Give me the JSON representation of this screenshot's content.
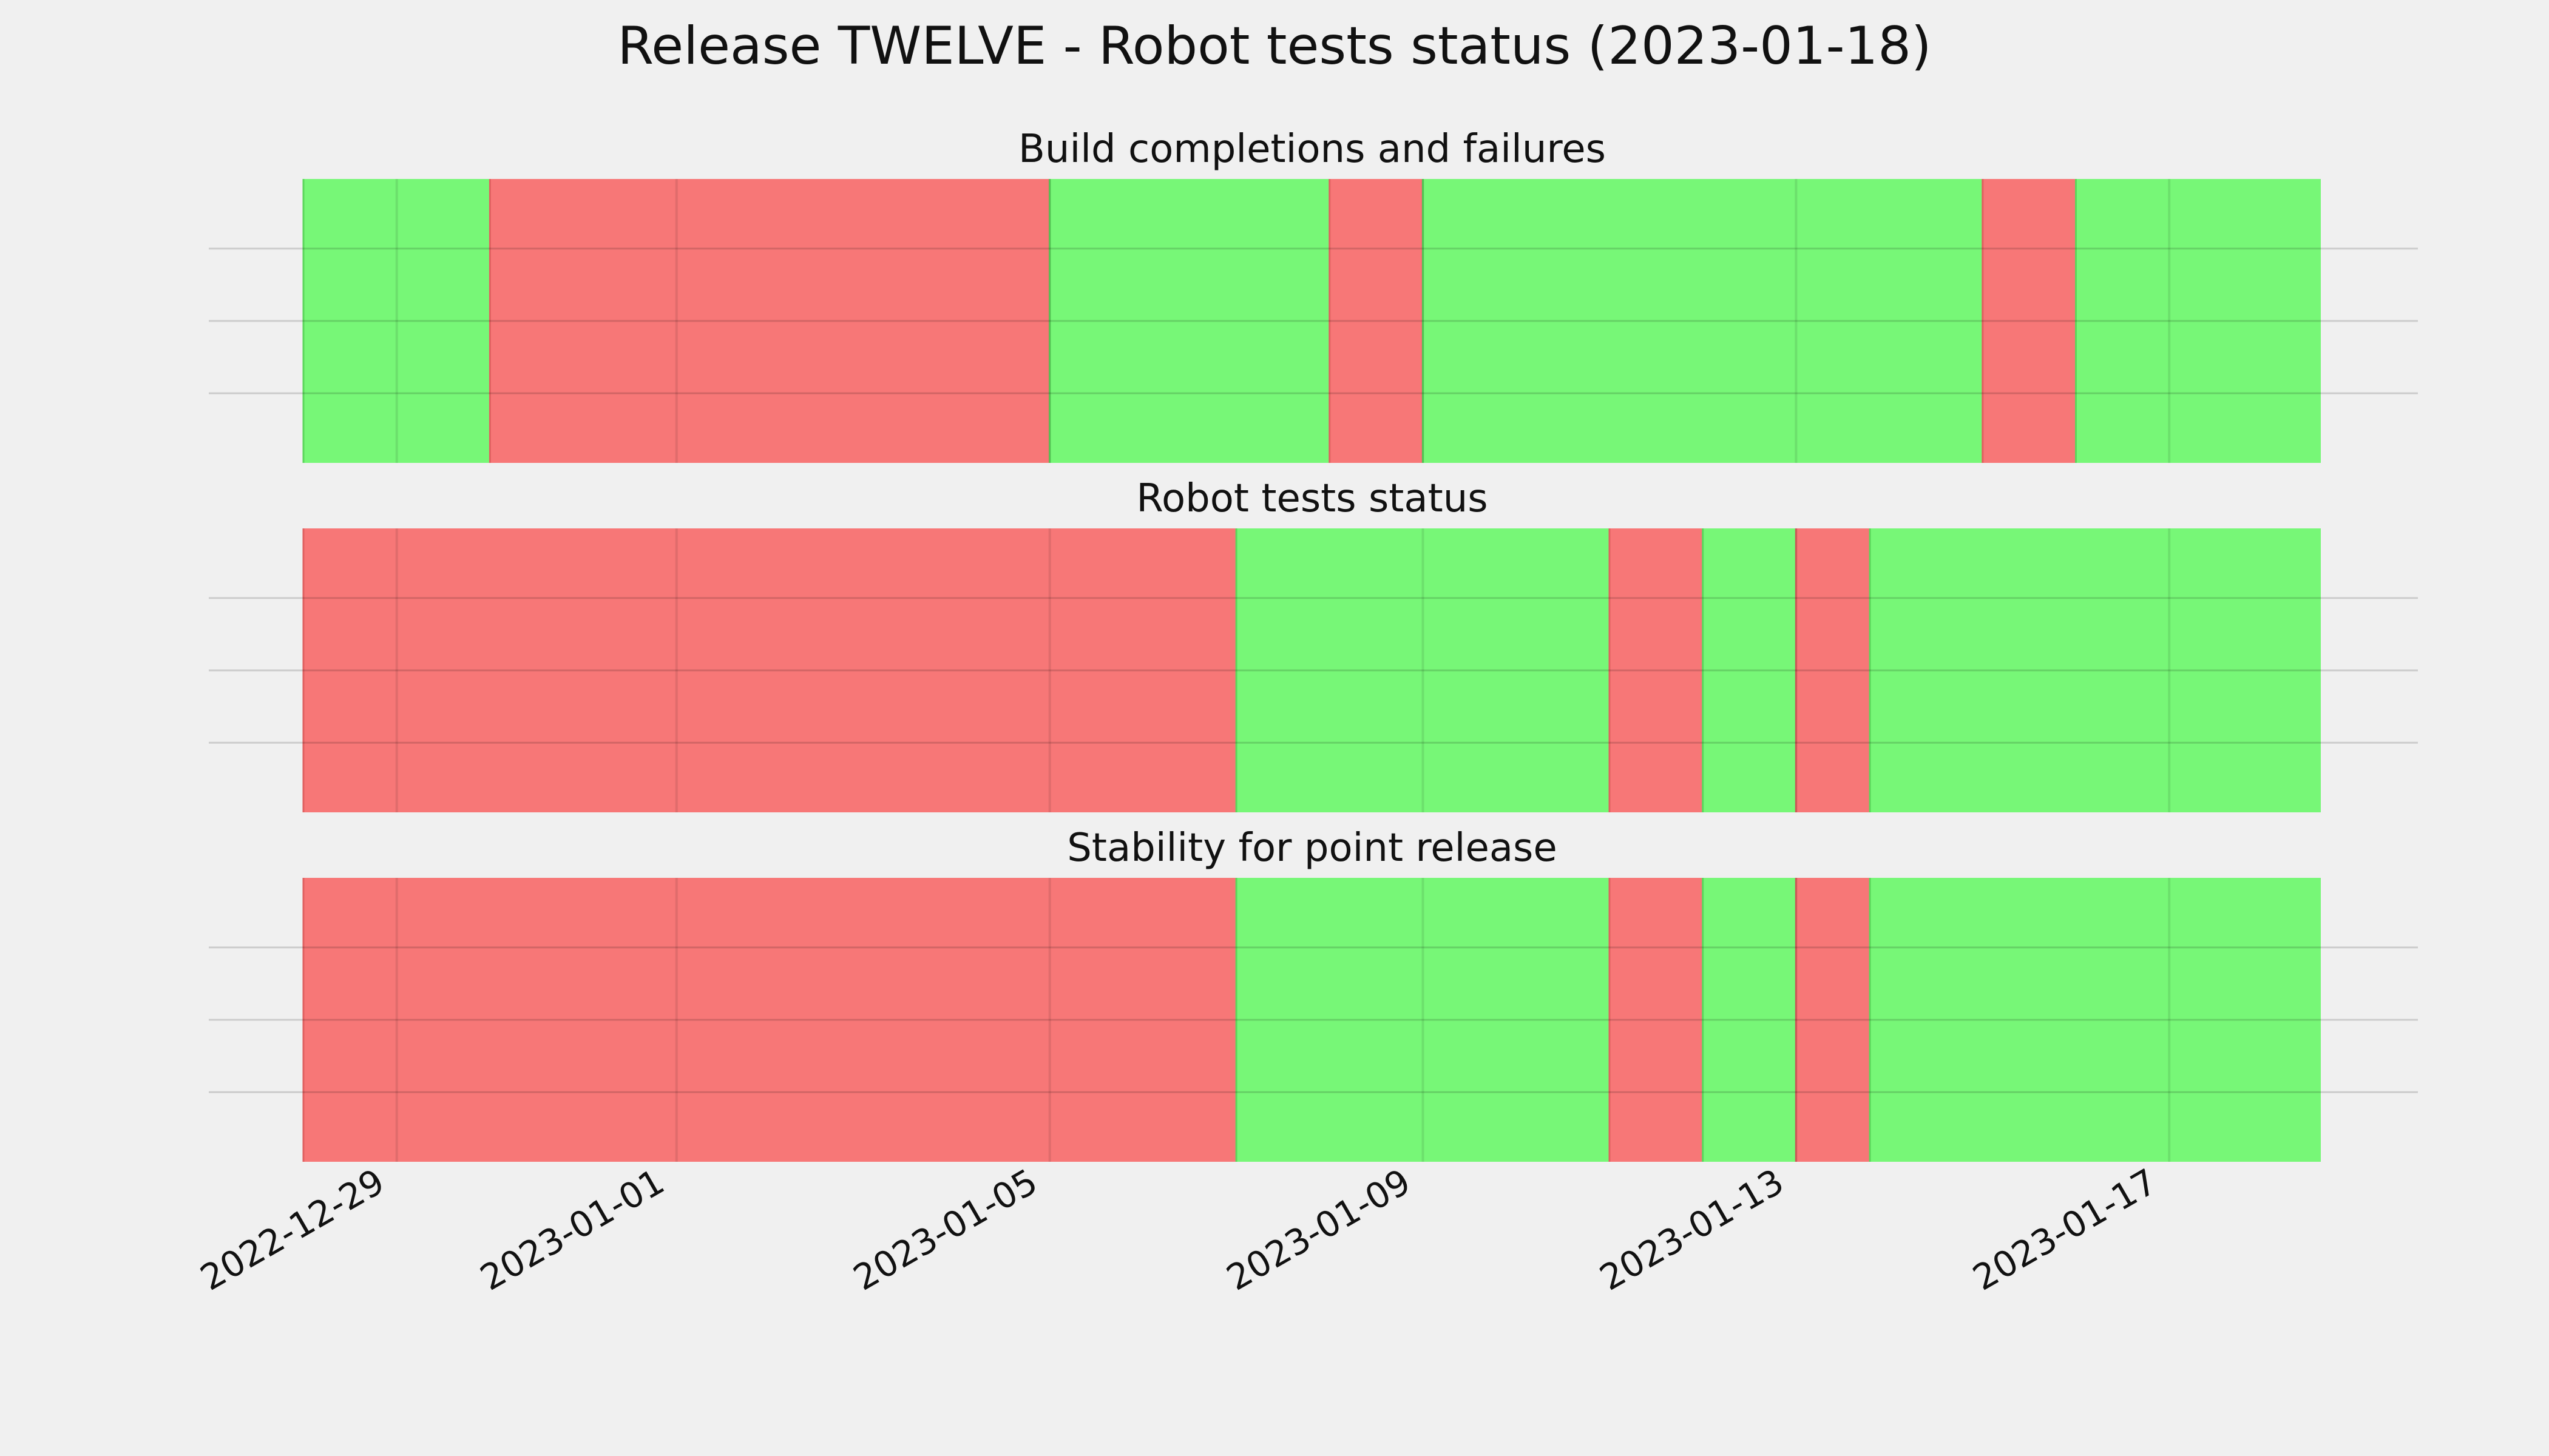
{
  "figure": {
    "title": "Release TWELVE - Robot tests status (2023-01-18)",
    "background": "#f0f0f0"
  },
  "chart_data": {
    "type": "timeline",
    "x_range": [
      "2022-12-28",
      "2023-01-18"
    ],
    "x_ticks": [
      "2022-12-29",
      "2023-01-01",
      "2023-01-05",
      "2023-01-09",
      "2023-01-13",
      "2023-01-17"
    ],
    "grid": true,
    "colors": {
      "pass": "#77f777",
      "fail": "#f77777"
    },
    "panels": [
      {
        "title": "Build completions and failures",
        "segments": [
          {
            "start": "2022-12-28T00:00",
            "end": "2022-12-30T00:00",
            "status": "pass"
          },
          {
            "start": "2022-12-30T00:00",
            "end": "2023-01-05T00:00",
            "status": "fail"
          },
          {
            "start": "2023-01-05T00:00",
            "end": "2023-01-08T00:00",
            "status": "pass"
          },
          {
            "start": "2023-01-08T00:00",
            "end": "2023-01-09T00:00",
            "status": "fail"
          },
          {
            "start": "2023-01-09T00:00",
            "end": "2023-01-15T00:00",
            "status": "pass"
          },
          {
            "start": "2023-01-15T00:00",
            "end": "2023-01-16T00:00",
            "status": "fail"
          },
          {
            "start": "2023-01-16T00:00",
            "end": "2023-01-18T15:00",
            "status": "pass"
          }
        ]
      },
      {
        "title": "Robot tests status",
        "segments": [
          {
            "start": "2022-12-28T00:00",
            "end": "2023-01-07T00:00",
            "status": "fail"
          },
          {
            "start": "2023-01-07T00:00",
            "end": "2023-01-11T00:00",
            "status": "pass"
          },
          {
            "start": "2023-01-11T00:00",
            "end": "2023-01-12T00:00",
            "status": "fail"
          },
          {
            "start": "2023-01-12T00:00",
            "end": "2023-01-13T00:00",
            "status": "pass"
          },
          {
            "start": "2023-01-13T00:00",
            "end": "2023-01-13T19:00",
            "status": "fail"
          },
          {
            "start": "2023-01-13T19:00",
            "end": "2023-01-18T15:00",
            "status": "pass"
          }
        ]
      },
      {
        "title": "Stability for point release",
        "segments": [
          {
            "start": "2022-12-28T00:00",
            "end": "2023-01-07T00:00",
            "status": "fail"
          },
          {
            "start": "2023-01-07T00:00",
            "end": "2023-01-11T00:00",
            "status": "pass"
          },
          {
            "start": "2023-01-11T00:00",
            "end": "2023-01-12T00:00",
            "status": "fail"
          },
          {
            "start": "2023-01-12T00:00",
            "end": "2023-01-13T00:00",
            "status": "pass"
          },
          {
            "start": "2023-01-13T00:00",
            "end": "2023-01-13T19:00",
            "status": "fail"
          },
          {
            "start": "2023-01-13T19:00",
            "end": "2023-01-18T15:00",
            "status": "pass"
          }
        ]
      }
    ]
  }
}
